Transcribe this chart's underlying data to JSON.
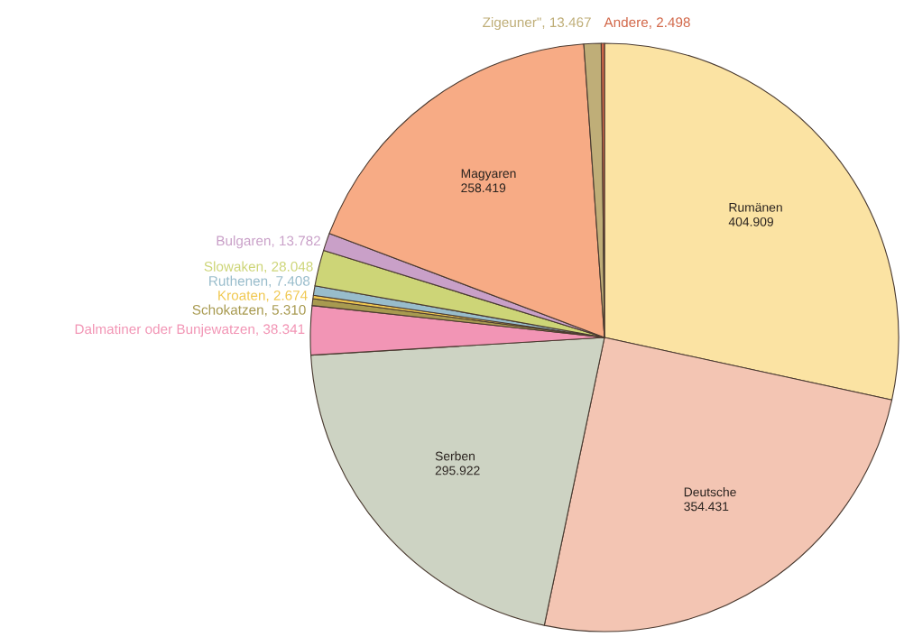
{
  "chart_data": {
    "type": "pie",
    "categories": [
      "Rumänen",
      "Deutsche",
      "Serben",
      "Dalmatiner oder Bunjewatzen",
      "Schokatzen",
      "Kroaten",
      "Ruthenen",
      "Slowaken",
      "Bulgaren",
      "Magyaren",
      "Zigeuner\"",
      "Andere"
    ],
    "values": [
      404909,
      354431,
      295922,
      38341,
      5310,
      2674,
      7408,
      28048,
      13782,
      258419,
      13467,
      2498
    ],
    "value_labels": [
      "404.909",
      "354.431",
      "295.922",
      "38.341",
      "5.310",
      "2.674",
      "7.408",
      "28.048",
      "13.782",
      "258.419",
      "13.467",
      "2.498"
    ],
    "colors": [
      "#fbe3a3",
      "#f3c5b3",
      "#cdd3c3",
      "#f295b5",
      "#a89a50",
      "#f0c850",
      "#98bccb",
      "#cdd577",
      "#c9a0c8",
      "#f7ab85",
      "#bfae78",
      "#d2684a"
    ]
  }
}
